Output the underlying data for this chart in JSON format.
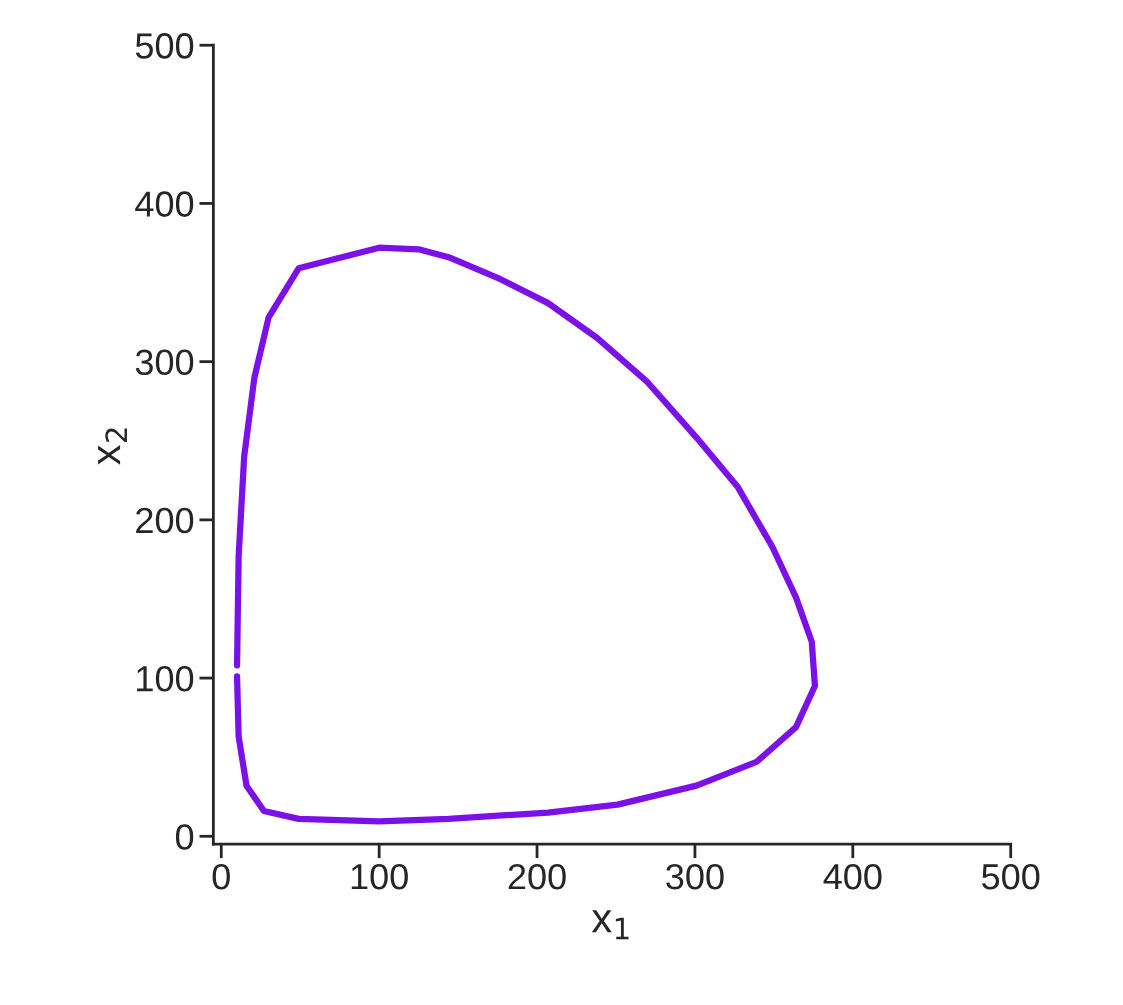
{
  "chart_data": {
    "type": "line",
    "xlabel": "x$_{1}$",
    "ylabel": "x$_{2}$",
    "series": [
      {
        "color": "#7b10e8",
        "x": [
          10,
          11,
          16,
          27,
          49,
          100,
          144,
          207,
          251,
          301,
          339,
          364,
          376,
          374,
          364,
          349,
          327,
          301,
          270,
          238,
          207,
          175,
          144,
          125,
          100,
          49,
          30,
          21,
          14.5,
          11,
          10
        ],
        "values": [
          101,
          63,
          32,
          16,
          11,
          9.5,
          11,
          15,
          20,
          32,
          47,
          69,
          95,
          123,
          151,
          183,
          221,
          252,
          287,
          315,
          337,
          353,
          366,
          371,
          372,
          359,
          328,
          290,
          240,
          177,
          108
        ]
      }
    ],
    "xlim": [
      -5,
      500
    ],
    "ylim": [
      -5,
      500
    ],
    "xticks": [
      0,
      100,
      200,
      300,
      400,
      500
    ],
    "yticks": [
      0,
      100,
      200,
      300,
      400,
      500
    ],
    "grid": false,
    "legend": false,
    "marker": "none",
    "line_style": "solid"
  }
}
